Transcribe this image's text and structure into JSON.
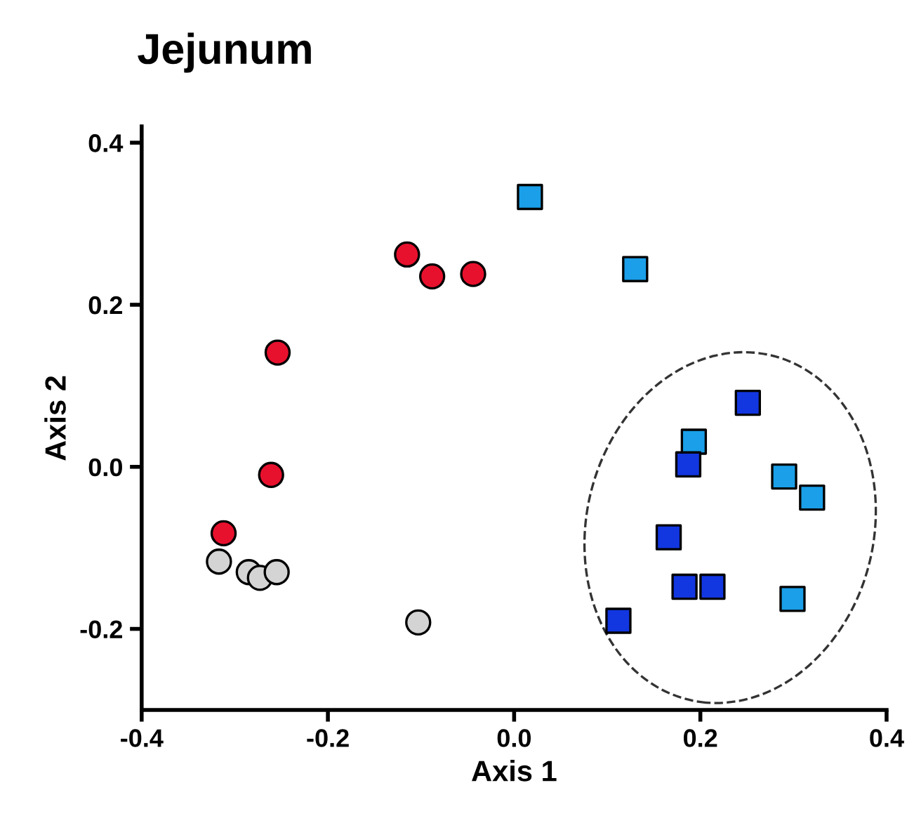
{
  "chart_data": {
    "type": "scatter",
    "title": "Jejunum",
    "xlabel": "Axis 1",
    "ylabel": "Axis 2",
    "xlim": [
      -0.4,
      0.4
    ],
    "ylim": [
      -0.3,
      0.42
    ],
    "xticks": [
      -0.4,
      -0.2,
      {
        "value": 0,
        "label": "0.0"
      },
      0.2,
      0.4
    ],
    "yticks": [
      -0.2,
      {
        "value": 0,
        "label": "0.0"
      },
      0.2,
      0.4
    ],
    "grid": false,
    "legend": false,
    "series": [
      {
        "color": "#e8112d",
        "marker": "circle",
        "x": [
          -0.115,
          -0.088,
          -0.044,
          -0.254,
          -0.261,
          -0.312
        ],
        "values": [
          0.262,
          0.235,
          0.238,
          0.141,
          -0.01,
          -0.082
        ]
      },
      {
        "color": "#d4d4d4",
        "marker": "circle",
        "x": [
          -0.317,
          -0.285,
          -0.273,
          -0.255,
          -0.103
        ],
        "values": [
          -0.117,
          -0.13,
          -0.137,
          -0.13,
          -0.192
        ]
      },
      {
        "color": "#1a9fe8",
        "marker": "square",
        "x": [
          0.017,
          0.13,
          0.193,
          0.29,
          0.32,
          0.299
        ],
        "values": [
          0.333,
          0.244,
          0.031,
          -0.012,
          -0.038,
          -0.163
        ]
      },
      {
        "color": "#1236e0",
        "marker": "square",
        "x": [
          0.251,
          0.187,
          0.166,
          0.183,
          0.213,
          0.112
        ],
        "values": [
          0.079,
          0.003,
          -0.087,
          -0.148,
          -0.148,
          -0.19
        ]
      }
    ]
  }
}
